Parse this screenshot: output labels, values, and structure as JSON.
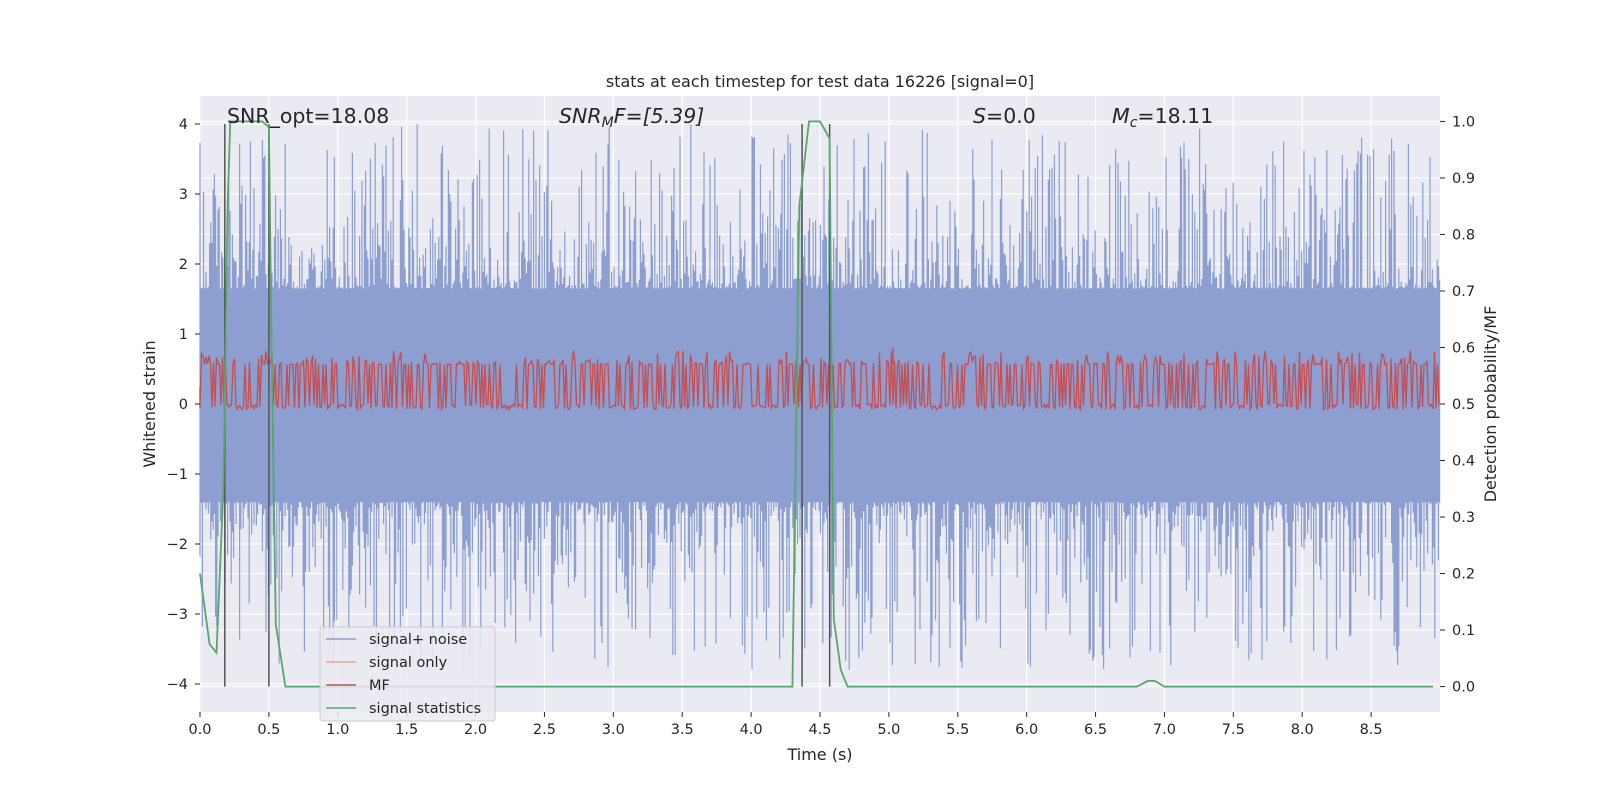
{
  "chart_data": {
    "type": "line",
    "title": "stats at each timestep for test data 16226 [signal=0]",
    "xlabel": "Time (s)",
    "ylabel_left": "Whitened strain",
    "ylabel_right": "Detection probability/MF",
    "xlim": [
      0.0,
      9.0
    ],
    "ylim_left": [
      -4.4,
      4.4
    ],
    "ylim_right": [
      -0.045,
      1.045
    ],
    "xticks": [
      0.0,
      0.5,
      1.0,
      1.5,
      2.0,
      2.5,
      3.0,
      3.5,
      4.0,
      4.5,
      5.0,
      5.5,
      6.0,
      6.5,
      7.0,
      7.5,
      8.0,
      8.5
    ],
    "xtick_labels": [
      "0.0",
      "0.5",
      "1.0",
      "1.5",
      "2.0",
      "2.5",
      "3.0",
      "3.5",
      "4.0",
      "4.5",
      "5.0",
      "5.5",
      "6.0",
      "6.5",
      "7.0",
      "7.5",
      "8.0",
      "8.5"
    ],
    "yticks_left": [
      -4,
      -3,
      -2,
      -1,
      0,
      1,
      2,
      3,
      4
    ],
    "ytick_labels_left": [
      "−4",
      "−3",
      "−2",
      "−1",
      "0",
      "1",
      "2",
      "3",
      "4"
    ],
    "yticks_right": [
      0.0,
      0.1,
      0.2,
      0.3,
      0.4,
      0.5,
      0.6,
      0.7,
      0.8,
      0.9,
      1.0
    ],
    "ytick_labels_right": [
      "0.0",
      "0.1",
      "0.2",
      "0.3",
      "0.4",
      "0.5",
      "0.6",
      "0.7",
      "0.8",
      "0.9",
      "1.0"
    ],
    "annotations": {
      "snr_opt": "SNR_opt=18.08",
      "snr_mf_var": "SNR",
      "snr_mf_sub": "M",
      "snr_mf_tail": "F=[5.39]",
      "s_var": "S",
      "s_tail": "=0.0",
      "mc_var": "M",
      "mc_sub": "c",
      "mc_tail": "=18.11"
    },
    "series": [
      {
        "name": "signal+ noise",
        "color": "#8c9fd0",
        "axis": "left",
        "noise_band": {
          "core_low": -1.4,
          "core_high": 1.65,
          "peak_high": 4.0,
          "peak_low": -3.8
        }
      },
      {
        "name": "signal only",
        "color": "#e8a88c",
        "axis": "left",
        "values": []
      },
      {
        "name": "MF",
        "color": "#c44e52",
        "axis": "right",
        "band": {
          "low": 0.49,
          "high": 0.57
        },
        "spike": {
          "x": 5.03,
          "y": 0.6
        }
      },
      {
        "name": "signal statistics",
        "color": "#55a868",
        "axis": "right",
        "x": [
          0.0,
          0.07,
          0.12,
          0.17,
          0.2,
          0.22,
          0.25,
          0.3,
          0.35,
          0.4,
          0.45,
          0.5,
          0.52,
          0.55,
          0.62,
          0.7,
          4.2,
          4.3,
          4.35,
          4.42,
          4.5,
          4.57,
          4.6,
          4.65,
          4.7,
          6.8,
          6.88,
          6.93,
          7.0,
          8.95
        ],
        "y": [
          0.2,
          0.075,
          0.06,
          0.35,
          0.85,
          1.0,
          1.0,
          1.0,
          1.0,
          1.0,
          1.0,
          0.99,
          0.6,
          0.11,
          0.0,
          0.0,
          0.0,
          0.0,
          0.85,
          1.0,
          1.0,
          0.97,
          0.12,
          0.03,
          0.0,
          0.0,
          0.01,
          0.01,
          0.0,
          0.0
        ]
      }
    ],
    "vlines": [
      0.18,
      0.5,
      4.37,
      4.57
    ],
    "legend": {
      "placement": "lower-left",
      "entries": [
        "signal+ noise",
        "signal only",
        "MF",
        "signal statistics"
      ]
    },
    "grid": true
  },
  "colors": {
    "plot_background": "#eaeaf2",
    "grid": "#ffffff",
    "vline": "#555555"
  }
}
